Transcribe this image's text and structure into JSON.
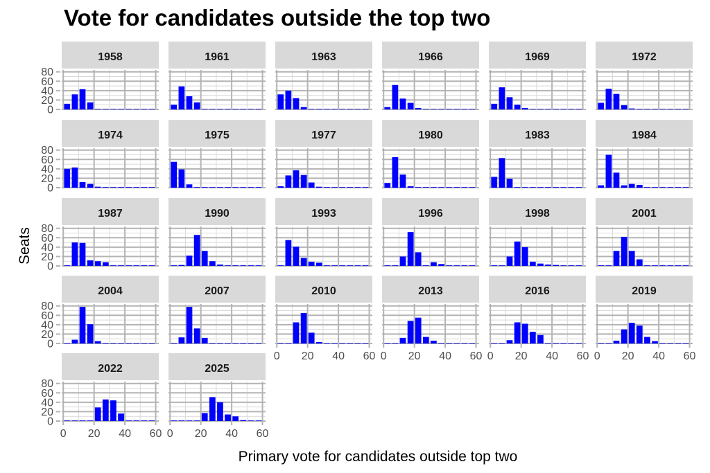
{
  "colors": {
    "bar": "#0000ff",
    "strip_bg": "#d9d9d9",
    "grid_major": "#b3b3b3",
    "grid_minor": "#d9d9d9"
  },
  "chart_data": {
    "type": "bar",
    "title": "Vote for candidates outside the top two",
    "xlabel": "Primary vote for candidates outside top two",
    "ylabel": "Seats",
    "xlim": [
      -1,
      62
    ],
    "ylim": [
      0,
      84
    ],
    "xticks": [
      "0",
      "20",
      "40",
      "60"
    ],
    "yticks": [
      "0",
      "20",
      "40",
      "60",
      "80"
    ],
    "bin_width": 5,
    "bin_starts": [
      0,
      5,
      10,
      15,
      20,
      25,
      30,
      35,
      40,
      45,
      50,
      55
    ],
    "grid": true,
    "facet_columns": 6,
    "panels": [
      {
        "label": "1958",
        "values": [
          12,
          32,
          43,
          15,
          0,
          0,
          0,
          0,
          0,
          0,
          0,
          0
        ]
      },
      {
        "label": "1961",
        "values": [
          10,
          49,
          28,
          15,
          0,
          0,
          0,
          0,
          0,
          0,
          0,
          0
        ]
      },
      {
        "label": "1963",
        "values": [
          32,
          40,
          24,
          5,
          0,
          0,
          0,
          0,
          0,
          0,
          0,
          0
        ]
      },
      {
        "label": "1966",
        "values": [
          5,
          52,
          23,
          14,
          3,
          0,
          0,
          0,
          0,
          0,
          0,
          0
        ]
      },
      {
        "label": "1969",
        "values": [
          12,
          47,
          26,
          10,
          3,
          0,
          0,
          0,
          0,
          0,
          0,
          0
        ]
      },
      {
        "label": "1972",
        "values": [
          14,
          44,
          33,
          9,
          2,
          0,
          0,
          0,
          0,
          0,
          0,
          0
        ]
      },
      {
        "label": "1974",
        "values": [
          40,
          43,
          12,
          8,
          2,
          0,
          0,
          0,
          0,
          0,
          0,
          0
        ]
      },
      {
        "label": "1975",
        "values": [
          55,
          39,
          7,
          0,
          1,
          0,
          0,
          0,
          0,
          0,
          0,
          0
        ]
      },
      {
        "label": "1977",
        "values": [
          3,
          26,
          37,
          27,
          11,
          2,
          0,
          0,
          0,
          0,
          0,
          0
        ]
      },
      {
        "label": "1980",
        "values": [
          10,
          65,
          28,
          3,
          0,
          0,
          0,
          0,
          0,
          0,
          0,
          0
        ]
      },
      {
        "label": "1983",
        "values": [
          23,
          63,
          19,
          0,
          0,
          0,
          0,
          0,
          0,
          0,
          0,
          0
        ]
      },
      {
        "label": "1984",
        "values": [
          5,
          70,
          32,
          5,
          8,
          6,
          0,
          0,
          0,
          0,
          0,
          0
        ]
      },
      {
        "label": "1987",
        "values": [
          0,
          50,
          49,
          12,
          10,
          8,
          0,
          0,
          0,
          0,
          0,
          0
        ]
      },
      {
        "label": "1990",
        "values": [
          0,
          2,
          22,
          66,
          32,
          10,
          3,
          0,
          0,
          0,
          0,
          0
        ]
      },
      {
        "label": "1993",
        "values": [
          0,
          55,
          41,
          17,
          9,
          7,
          0,
          0,
          0,
          0,
          0,
          0
        ]
      },
      {
        "label": "1996",
        "values": [
          0,
          0,
          20,
          72,
          29,
          0,
          8,
          4,
          0,
          0,
          0,
          0
        ]
      },
      {
        "label": "1998",
        "values": [
          0,
          0,
          20,
          52,
          40,
          9,
          5,
          3,
          2,
          0,
          0,
          0
        ]
      },
      {
        "label": "2001",
        "values": [
          0,
          0,
          32,
          62,
          32,
          14,
          0,
          0,
          0,
          0,
          0,
          0
        ]
      },
      {
        "label": "2004",
        "values": [
          0,
          8,
          78,
          41,
          5,
          1,
          0,
          0,
          0,
          0,
          0,
          0
        ]
      },
      {
        "label": "2007",
        "values": [
          0,
          13,
          78,
          32,
          12,
          0,
          0,
          0,
          0,
          0,
          0,
          0
        ]
      },
      {
        "label": "2010",
        "values": [
          0,
          0,
          45,
          65,
          23,
          3,
          0,
          0,
          0,
          0,
          0,
          0
        ]
      },
      {
        "label": "2013",
        "values": [
          0,
          0,
          12,
          48,
          55,
          14,
          6,
          0,
          0,
          0,
          0,
          0
        ]
      },
      {
        "label": "2016",
        "values": [
          0,
          0,
          7,
          45,
          42,
          25,
          18,
          0,
          0,
          0,
          0,
          0
        ]
      },
      {
        "label": "2019",
        "values": [
          0,
          0,
          6,
          30,
          44,
          38,
          14,
          5,
          0,
          0,
          0,
          0
        ]
      },
      {
        "label": "2022",
        "values": [
          0,
          0,
          0,
          0,
          29,
          46,
          44,
          16,
          0,
          0,
          0,
          0
        ]
      },
      {
        "label": "2025",
        "values": [
          0,
          0,
          0,
          0,
          17,
          51,
          40,
          14,
          10,
          2,
          0,
          0
        ]
      }
    ]
  }
}
